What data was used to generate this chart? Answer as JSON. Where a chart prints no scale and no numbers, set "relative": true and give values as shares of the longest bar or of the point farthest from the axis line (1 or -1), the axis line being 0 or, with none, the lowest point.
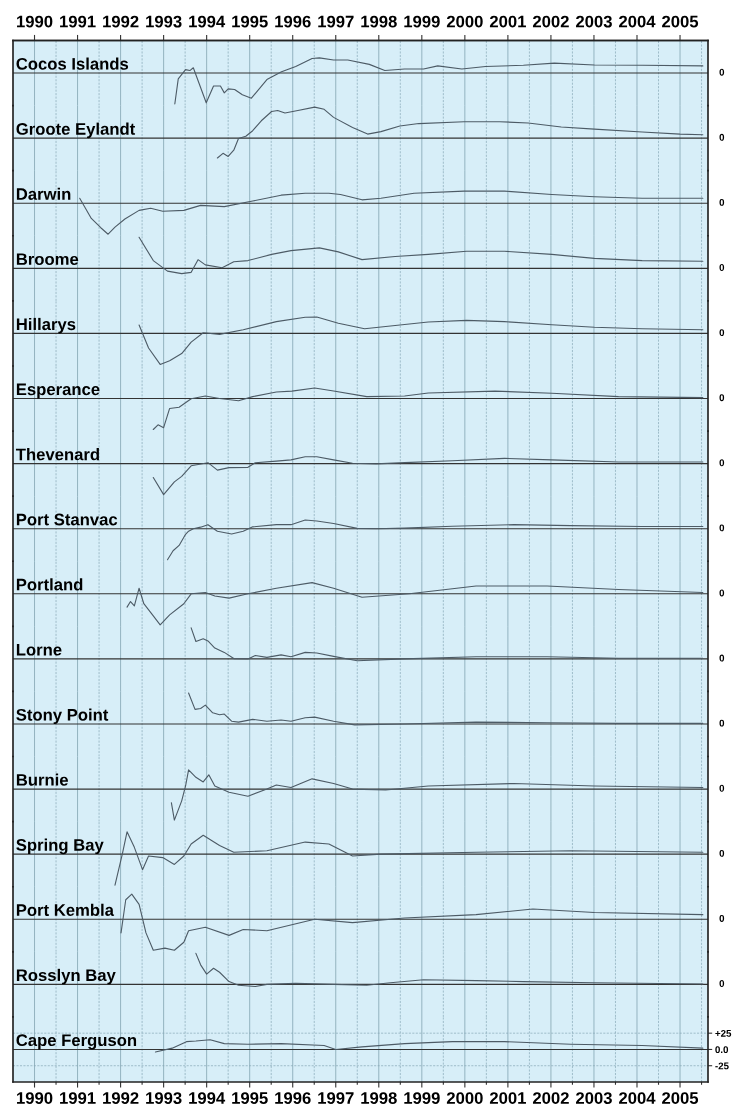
{
  "chart_data": [
    {
      "type": "line",
      "title": "Cocos Islands",
      "relative": true,
      "annotations": [
        "0"
      ],
      "color": "#4d5b66",
      "grid": "x",
      "tick_labels": false,
      "x2lim": [
        1989.5,
        2005.65
      ],
      "x2ticks": [
        1990,
        1991,
        1992,
        1993,
        1994,
        1995,
        1996,
        1997,
        1998,
        1999,
        2000,
        2001,
        2002,
        2003,
        2004,
        2005
      ],
      "xlim": [
        1989.5,
        2005.65
      ],
      "xticks": [
        1990,
        {
          "value": 1990.5,
          "label": null
        },
        1991,
        {
          "value": 1991.5,
          "label": null
        },
        1992,
        {
          "value": 1992.5,
          "label": null
        },
        1993,
        {
          "value": 1993.5,
          "label": null
        },
        1994,
        {
          "value": 1994.5,
          "label": null
        },
        1995,
        {
          "value": 1995.5,
          "label": null
        },
        1996,
        {
          "value": 1996.5,
          "label": null
        },
        1997,
        {
          "value": 1997.5,
          "label": null
        },
        1998,
        {
          "value": 1998.5,
          "label": null
        },
        1999,
        {
          "value": 1999.5,
          "label": null
        },
        2000,
        {
          "value": 2000.5,
          "label": null
        },
        2001,
        {
          "value": 2001.5,
          "label": null
        },
        2002,
        {
          "value": 2002.5,
          "label": null
        },
        2003,
        {
          "value": 2003.5,
          "label": null
        },
        2004,
        {
          "value": 2004.5,
          "label": null
        },
        2005,
        {
          "value": 2005.5,
          "label": null
        }
      ],
      "x": [
        1993.26,
        1993.34,
        1993.51,
        1993.61,
        1993.69,
        1993.99,
        1994.16,
        1994.32,
        1994.41,
        1994.5,
        1994.65,
        1994.83,
        1995.04,
        1995.4,
        1995.74,
        1996.07,
        1996.45,
        1996.62,
        1996.95,
        1997.28,
        1997.78,
        1998.14,
        1998.6,
        1999.04,
        1999.37,
        1999.93,
        2000.48,
        2001.36,
        2002.08,
        2003.01,
        2004.12,
        2005.53
      ],
      "values": [
        -1,
        -0.19,
        0.11,
        0.08,
        0.17,
        -0.96,
        -0.42,
        -0.42,
        -0.64,
        -0.51,
        -0.53,
        -0.7,
        -0.81,
        -0.21,
        0.04,
        0.21,
        0.47,
        0.49,
        0.42,
        0.42,
        0.28,
        0.08,
        0.13,
        0.13,
        0.23,
        0.13,
        0.21,
        0.25,
        0.32,
        0.26,
        0.25,
        0.23
      ]
    },
    {
      "type": "line",
      "title": "Groote Eylandt",
      "relative": true,
      "annotations": [
        "0"
      ],
      "color": "#4d5b66",
      "grid": "x",
      "tick_labels": false,
      "xlim": [
        1989.5,
        2005.65
      ],
      "xticks": [
        1990,
        {
          "value": 1990.5,
          "label": null
        },
        1991,
        {
          "value": 1991.5,
          "label": null
        },
        1992,
        {
          "value": 1992.5,
          "label": null
        },
        1993,
        {
          "value": 1993.5,
          "label": null
        },
        1994,
        {
          "value": 1994.5,
          "label": null
        },
        1995,
        {
          "value": 1995.5,
          "label": null
        },
        1996,
        {
          "value": 1996.5,
          "label": null
        },
        1997,
        {
          "value": 1997.5,
          "label": null
        },
        1998,
        {
          "value": 1998.5,
          "label": null
        },
        1999,
        {
          "value": 1999.5,
          "label": null
        },
        2000,
        {
          "value": 2000.5,
          "label": null
        },
        2001,
        {
          "value": 2001.5,
          "label": null
        },
        2002,
        {
          "value": 2002.5,
          "label": null
        },
        2003,
        {
          "value": 2003.5,
          "label": null
        },
        2004,
        {
          "value": 2004.5,
          "label": null
        },
        2005,
        {
          "value": 2005.5,
          "label": null
        }
      ],
      "x": [
        1994.25,
        1994.38,
        1994.5,
        1994.63,
        1994.74,
        1994.91,
        1995.07,
        1995.27,
        1995.51,
        1995.65,
        1995.82,
        1996.12,
        1996.51,
        1996.73,
        1996.95,
        1997.39,
        1997.74,
        1998.05,
        1998.49,
        1998.93,
        1999.98,
        2000.81,
        2001.47,
        2002.24,
        2003.01,
        2004.12,
        2005.0,
        2005.53
      ],
      "values": [
        -0.64,
        -0.49,
        -0.59,
        -0.39,
        -0.01,
        0.06,
        0.24,
        0.56,
        0.86,
        0.89,
        0.81,
        0.89,
        1,
        0.93,
        0.67,
        0.34,
        0.13,
        0.21,
        0.39,
        0.47,
        0.53,
        0.53,
        0.49,
        0.36,
        0.29,
        0.2,
        0.13,
        0.11
      ]
    },
    {
      "type": "line",
      "title": "Darwin",
      "relative": true,
      "annotations": [
        "0"
      ],
      "color": "#4d5b66",
      "grid": "x",
      "tick_labels": false,
      "xlim": [
        1989.5,
        2005.65
      ],
      "xticks": [
        1990,
        {
          "value": 1990.5,
          "label": null
        },
        1991,
        {
          "value": 1991.5,
          "label": null
        },
        1992,
        {
          "value": 1992.5,
          "label": null
        },
        1993,
        {
          "value": 1993.5,
          "label": null
        },
        1994,
        {
          "value": 1994.5,
          "label": null
        },
        1995,
        {
          "value": 1995.5,
          "label": null
        },
        1996,
        {
          "value": 1996.5,
          "label": null
        },
        1997,
        {
          "value": 1997.5,
          "label": null
        },
        1998,
        {
          "value": 1998.5,
          "label": null
        },
        1999,
        {
          "value": 1999.5,
          "label": null
        },
        2000,
        {
          "value": 2000.5,
          "label": null
        },
        2001,
        {
          "value": 2001.5,
          "label": null
        },
        2002,
        {
          "value": 2002.5,
          "label": null
        },
        2003,
        {
          "value": 2003.5,
          "label": null
        },
        2004,
        {
          "value": 2004.5,
          "label": null
        },
        2005,
        {
          "value": 2005.5,
          "label": null
        }
      ],
      "x": [
        1991.05,
        1991.32,
        1991.54,
        1991.71,
        1991.87,
        1992.1,
        1992.43,
        1992.7,
        1992.98,
        1993.47,
        1993.86,
        1994.41,
        1995.07,
        1995.73,
        1996.29,
        1996.84,
        1997.11,
        1997.61,
        1998.05,
        1998.82,
        1999.98,
        2000.92,
        2002.02,
        2003.01,
        2004.12,
        2005.53
      ],
      "values": [
        0.16,
        -0.49,
        -0.79,
        -1,
        -0.77,
        -0.51,
        -0.23,
        -0.16,
        -0.26,
        -0.23,
        -0.07,
        -0.11,
        0.07,
        0.26,
        0.32,
        0.32,
        0.28,
        0.11,
        0.16,
        0.32,
        0.39,
        0.39,
        0.28,
        0.21,
        0.16,
        0.16
      ]
    },
    {
      "type": "line",
      "title": "Broome",
      "relative": true,
      "annotations": [
        "0"
      ],
      "color": "#4d5b66",
      "grid": "x",
      "tick_labels": false,
      "xlim": [
        1989.5,
        2005.65
      ],
      "xticks": [
        1990,
        {
          "value": 1990.5,
          "label": null
        },
        1991,
        {
          "value": 1991.5,
          "label": null
        },
        1992,
        {
          "value": 1992.5,
          "label": null
        },
        1993,
        {
          "value": 1993.5,
          "label": null
        },
        1994,
        {
          "value": 1994.5,
          "label": null
        },
        1995,
        {
          "value": 1995.5,
          "label": null
        },
        1996,
        {
          "value": 1996.5,
          "label": null
        },
        1997,
        {
          "value": 1997.5,
          "label": null
        },
        1998,
        {
          "value": 1998.5,
          "label": null
        },
        1999,
        {
          "value": 1999.5,
          "label": null
        },
        2000,
        {
          "value": 2000.5,
          "label": null
        },
        2001,
        {
          "value": 2001.5,
          "label": null
        },
        2002,
        {
          "value": 2002.5,
          "label": null
        },
        2003,
        {
          "value": 2003.5,
          "label": null
        },
        2004,
        {
          "value": 2004.5,
          "label": null
        },
        2005,
        {
          "value": 2005.5,
          "label": null
        }
      ],
      "x": [
        1992.43,
        1992.76,
        1993.09,
        1993.42,
        1993.64,
        1993.8,
        1993.97,
        1994.36,
        1994.63,
        1994.96,
        1995.51,
        1995.96,
        1996.62,
        1997.06,
        1997.61,
        1998.38,
        1999.15,
        2000.04,
        2000.92,
        2002.02,
        2003.01,
        2004.12,
        2005.53
      ],
      "values": [
        1,
        0.25,
        -0.09,
        -0.17,
        -0.13,
        0.28,
        0.11,
        0.02,
        0.21,
        0.25,
        0.45,
        0.57,
        0.66,
        0.53,
        0.28,
        0.38,
        0.45,
        0.55,
        0.55,
        0.45,
        0.32,
        0.25,
        0.23
      ]
    },
    {
      "type": "line",
      "title": "Hillarys",
      "relative": true,
      "annotations": [
        "0"
      ],
      "color": "#4d5b66",
      "grid": "x",
      "tick_labels": false,
      "xlim": [
        1989.5,
        2005.65
      ],
      "xticks": [
        1990,
        {
          "value": 1990.5,
          "label": null
        },
        1991,
        {
          "value": 1991.5,
          "label": null
        },
        1992,
        {
          "value": 1992.5,
          "label": null
        },
        1993,
        {
          "value": 1993.5,
          "label": null
        },
        1994,
        {
          "value": 1994.5,
          "label": null
        },
        1995,
        {
          "value": 1995.5,
          "label": null
        },
        1996,
        {
          "value": 1996.5,
          "label": null
        },
        1997,
        {
          "value": 1997.5,
          "label": null
        },
        1998,
        {
          "value": 1998.5,
          "label": null
        },
        1999,
        {
          "value": 1999.5,
          "label": null
        },
        2000,
        {
          "value": 2000.5,
          "label": null
        },
        2001,
        {
          "value": 2001.5,
          "label": null
        },
        2002,
        {
          "value": 2002.5,
          "label": null
        },
        2003,
        {
          "value": 2003.5,
          "label": null
        },
        2004,
        {
          "value": 2004.5,
          "label": null
        },
        2005,
        {
          "value": 2005.5,
          "label": null
        }
      ],
      "x": [
        1992.43,
        1992.65,
        1992.92,
        1993.14,
        1993.42,
        1993.64,
        1993.92,
        1994.3,
        1994.85,
        1995.62,
        1996.29,
        1996.56,
        1997.06,
        1997.67,
        1998.49,
        1999.15,
        2000.04,
        2000.92,
        2002.02,
        2003.01,
        2004.12,
        2005.53
      ],
      "values": [
        0.27,
        -0.47,
        -1,
        -0.88,
        -0.65,
        -0.28,
        0.02,
        -0.03,
        0.12,
        0.38,
        0.52,
        0.53,
        0.33,
        0.15,
        0.27,
        0.37,
        0.42,
        0.38,
        0.28,
        0.2,
        0.15,
        0.12
      ]
    },
    {
      "type": "line",
      "title": "Esperance",
      "relative": true,
      "annotations": [
        "0"
      ],
      "color": "#4d5b66",
      "grid": "x",
      "tick_labels": false,
      "xlim": [
        1989.5,
        2005.65
      ],
      "xticks": [
        1990,
        {
          "value": 1990.5,
          "label": null
        },
        1991,
        {
          "value": 1991.5,
          "label": null
        },
        1992,
        {
          "value": 1992.5,
          "label": null
        },
        1993,
        {
          "value": 1993.5,
          "label": null
        },
        1994,
        {
          "value": 1994.5,
          "label": null
        },
        1995,
        {
          "value": 1995.5,
          "label": null
        },
        1996,
        {
          "value": 1996.5,
          "label": null
        },
        1997,
        {
          "value": 1997.5,
          "label": null
        },
        1998,
        {
          "value": 1998.5,
          "label": null
        },
        1999,
        {
          "value": 1999.5,
          "label": null
        },
        2000,
        {
          "value": 2000.5,
          "label": null
        },
        2001,
        {
          "value": 2001.5,
          "label": null
        },
        2002,
        {
          "value": 2002.5,
          "label": null
        },
        2003,
        {
          "value": 2003.5,
          "label": null
        },
        2004,
        {
          "value": 2004.5,
          "label": null
        },
        2005,
        {
          "value": 2005.5,
          "label": null
        }
      ],
      "x": [
        1992.76,
        1992.87,
        1993.0,
        1993.14,
        1993.36,
        1993.64,
        1993.97,
        1994.3,
        1994.74,
        1995.07,
        1995.62,
        1995.98,
        1996.51,
        1996.95,
        1997.72,
        1998.6,
        1999.15,
        2000.7,
        2002.02,
        2003.57,
        2005.53
      ],
      "values": [
        -1,
        -0.85,
        -0.94,
        -0.32,
        -0.28,
        -0.01,
        0.08,
        0,
        -0.07,
        0.06,
        0.21,
        0.24,
        0.34,
        0.24,
        0.06,
        0.08,
        0.18,
        0.24,
        0.17,
        0.06,
        0.03
      ]
    },
    {
      "type": "line",
      "title": "Thevenard",
      "relative": true,
      "annotations": [
        "0"
      ],
      "color": "#4d5b66",
      "grid": "x",
      "tick_labels": false,
      "xlim": [
        1989.5,
        2005.65
      ],
      "xticks": [
        1990,
        {
          "value": 1990.5,
          "label": null
        },
        1991,
        {
          "value": 1991.5,
          "label": null
        },
        1992,
        {
          "value": 1992.5,
          "label": null
        },
        1993,
        {
          "value": 1993.5,
          "label": null
        },
        1994,
        {
          "value": 1994.5,
          "label": null
        },
        1995,
        {
          "value": 1995.5,
          "label": null
        },
        1996,
        {
          "value": 1996.5,
          "label": null
        },
        1997,
        {
          "value": 1997.5,
          "label": null
        },
        1998,
        {
          "value": 1998.5,
          "label": null
        },
        1999,
        {
          "value": 1999.5,
          "label": null
        },
        2000,
        {
          "value": 2000.5,
          "label": null
        },
        2001,
        {
          "value": 2001.5,
          "label": null
        },
        2002,
        {
          "value": 2002.5,
          "label": null
        },
        2003,
        {
          "value": 2003.5,
          "label": null
        },
        2004,
        {
          "value": 2004.5,
          "label": null
        },
        2005,
        {
          "value": 2005.5,
          "label": null
        }
      ],
      "x": [
        1992.76,
        1993.0,
        1993.25,
        1993.42,
        1993.64,
        1994.03,
        1994.25,
        1994.52,
        1994.96,
        1995.13,
        1995.62,
        1995.96,
        1996.29,
        1996.56,
        1996.95,
        1997.39,
        1997.94,
        1998.6,
        1999.71,
        2000.92,
        2002.02,
        2003.57,
        2005.53
      ],
      "values": [
        -0.45,
        -1,
        -0.59,
        -0.41,
        -0.07,
        0.03,
        -0.21,
        -0.13,
        -0.12,
        0.03,
        0.08,
        0.12,
        0.22,
        0.22,
        0.12,
        0.01,
        -0.01,
        0.03,
        0.09,
        0.17,
        0.12,
        0.05,
        0.05
      ]
    },
    {
      "type": "line",
      "title": "Port Stanvac",
      "relative": true,
      "annotations": [
        "0"
      ],
      "color": "#4d5b66",
      "grid": "x",
      "tick_labels": false,
      "xlim": [
        1989.5,
        2005.65
      ],
      "xticks": [
        1990,
        {
          "value": 1990.5,
          "label": null
        },
        1991,
        {
          "value": 1991.5,
          "label": null
        },
        1992,
        {
          "value": 1992.5,
          "label": null
        },
        1993,
        {
          "value": 1993.5,
          "label": null
        },
        1994,
        {
          "value": 1994.5,
          "label": null
        },
        1995,
        {
          "value": 1995.5,
          "label": null
        },
        1996,
        {
          "value": 1996.5,
          "label": null
        },
        1997,
        {
          "value": 1997.5,
          "label": null
        },
        1998,
        {
          "value": 1998.5,
          "label": null
        },
        1999,
        {
          "value": 1999.5,
          "label": null
        },
        2000,
        {
          "value": 2000.5,
          "label": null
        },
        2001,
        {
          "value": 2001.5,
          "label": null
        },
        2002,
        {
          "value": 2002.5,
          "label": null
        },
        2003,
        {
          "value": 2003.5,
          "label": null
        },
        2004,
        {
          "value": 2004.5,
          "label": null
        },
        2005,
        {
          "value": 2005.5,
          "label": null
        }
      ],
      "x": [
        1993.09,
        1993.22,
        1993.36,
        1993.51,
        1993.58,
        1993.69,
        1993.86,
        1994.03,
        1994.25,
        1994.58,
        1994.85,
        1995.07,
        1995.62,
        1995.96,
        1996.29,
        1996.56,
        1996.95,
        1997.5,
        1997.94,
        1998.6,
        1999.71,
        2001.14,
        2002.46,
        2004.12,
        2005.53
      ],
      "values": [
        -1,
        -0.71,
        -0.54,
        -0.18,
        -0.08,
        0,
        0.05,
        0.13,
        -0.08,
        -0.17,
        -0.08,
        0.06,
        0.13,
        0.13,
        0.28,
        0.25,
        0.17,
        0.01,
        0,
        0.02,
        0.08,
        0.13,
        0.1,
        0.07,
        0.07
      ]
    },
    {
      "type": "line",
      "title": "Portland",
      "relative": true,
      "annotations": [
        "0"
      ],
      "color": "#4d5b66",
      "grid": "x",
      "tick_labels": false,
      "xlim": [
        1989.5,
        2005.65
      ],
      "xticks": [
        1990,
        {
          "value": 1990.5,
          "label": null
        },
        1991,
        {
          "value": 1991.5,
          "label": null
        },
        1992,
        {
          "value": 1992.5,
          "label": null
        },
        1993,
        {
          "value": 1993.5,
          "label": null
        },
        1994,
        {
          "value": 1994.5,
          "label": null
        },
        1995,
        {
          "value": 1995.5,
          "label": null
        },
        1996,
        {
          "value": 1996.5,
          "label": null
        },
        1997,
        {
          "value": 1997.5,
          "label": null
        },
        1998,
        {
          "value": 1998.5,
          "label": null
        },
        1999,
        {
          "value": 1999.5,
          "label": null
        },
        2000,
        {
          "value": 2000.5,
          "label": null
        },
        2001,
        {
          "value": 2001.5,
          "label": null
        },
        2002,
        {
          "value": 2002.5,
          "label": null
        },
        2003,
        {
          "value": 2003.5,
          "label": null
        },
        2004,
        {
          "value": 2004.5,
          "label": null
        },
        2005,
        {
          "value": 2005.5,
          "label": null
        }
      ],
      "x": [
        1992.15,
        1992.23,
        1992.32,
        1992.43,
        1992.54,
        1992.76,
        1992.92,
        1993.14,
        1993.47,
        1993.64,
        1993.97,
        1994.19,
        1994.52,
        1994.96,
        1995.62,
        1996.45,
        1996.95,
        1997.61,
        1998.71,
        2000.26,
        2001.91,
        2003.57,
        2005.53
      ],
      "values": [
        -0.43,
        -0.25,
        -0.39,
        0.18,
        -0.32,
        -0.71,
        -1,
        -0.68,
        -0.32,
        0,
        0.04,
        -0.07,
        -0.14,
        0,
        0.18,
        0.36,
        0.18,
        -0.11,
        0,
        0.25,
        0.25,
        0.14,
        0.04
      ]
    },
    {
      "type": "line",
      "title": "Lorne",
      "relative": true,
      "annotations": [
        "0"
      ],
      "color": "#4d5b66",
      "grid": "x",
      "tick_labels": false,
      "xlim": [
        1989.5,
        2005.65
      ],
      "xticks": [
        1990,
        {
          "value": 1990.5,
          "label": null
        },
        1991,
        {
          "value": 1991.5,
          "label": null
        },
        1992,
        {
          "value": 1992.5,
          "label": null
        },
        1993,
        {
          "value": 1993.5,
          "label": null
        },
        1994,
        {
          "value": 1994.5,
          "label": null
        },
        1995,
        {
          "value": 1995.5,
          "label": null
        },
        1996,
        {
          "value": 1996.5,
          "label": null
        },
        1997,
        {
          "value": 1997.5,
          "label": null
        },
        1998,
        {
          "value": 1998.5,
          "label": null
        },
        1999,
        {
          "value": 1999.5,
          "label": null
        },
        2000,
        {
          "value": 2000.5,
          "label": null
        },
        2001,
        {
          "value": 2001.5,
          "label": null
        },
        2002,
        {
          "value": 2002.5,
          "label": null
        },
        2003,
        {
          "value": 2003.5,
          "label": null
        },
        2004,
        {
          "value": 2004.5,
          "label": null
        },
        2005,
        {
          "value": 2005.5,
          "label": null
        }
      ],
      "x": [
        1993.64,
        1993.75,
        1993.92,
        1994.03,
        1994.19,
        1994.41,
        1994.63,
        1994.96,
        1995.13,
        1995.4,
        1995.73,
        1995.96,
        1996.29,
        1996.56,
        1996.95,
        1997.5,
        1998.6,
        2000.26,
        2001.91,
        2003.57,
        2005.53
      ],
      "values": [
        1,
        0.56,
        0.65,
        0.58,
        0.35,
        0.21,
        0.01,
        0,
        0.11,
        0.05,
        0.13,
        0.07,
        0.21,
        0.19,
        0.08,
        -0.06,
        0,
        0.07,
        0.07,
        0.02,
        0.02
      ]
    },
    {
      "type": "line",
      "title": "Stony Point",
      "relative": true,
      "annotations": [
        "0"
      ],
      "color": "#4d5b66",
      "grid": "x",
      "tick_labels": false,
      "xlim": [
        1989.5,
        2005.65
      ],
      "xticks": [
        1990,
        {
          "value": 1990.5,
          "label": null
        },
        1991,
        {
          "value": 1991.5,
          "label": null
        },
        1992,
        {
          "value": 1992.5,
          "label": null
        },
        1993,
        {
          "value": 1993.5,
          "label": null
        },
        1994,
        {
          "value": 1994.5,
          "label": null
        },
        1995,
        {
          "value": 1995.5,
          "label": null
        },
        1996,
        {
          "value": 1996.5,
          "label": null
        },
        1997,
        {
          "value": 1997.5,
          "label": null
        },
        1998,
        {
          "value": 1998.5,
          "label": null
        },
        1999,
        {
          "value": 1999.5,
          "label": null
        },
        2000,
        {
          "value": 2000.5,
          "label": null
        },
        2001,
        {
          "value": 2001.5,
          "label": null
        },
        2002,
        {
          "value": 2002.5,
          "label": null
        },
        2003,
        {
          "value": 2003.5,
          "label": null
        },
        2004,
        {
          "value": 2004.5,
          "label": null
        },
        2005,
        {
          "value": 2005.5,
          "label": null
        }
      ],
      "x": [
        1993.58,
        1993.73,
        1993.86,
        1993.97,
        1994.14,
        1994.3,
        1994.41,
        1994.58,
        1994.74,
        1995.07,
        1995.4,
        1995.73,
        1995.96,
        1996.29,
        1996.51,
        1996.95,
        1997.44,
        1998.6,
        2000.26,
        2001.91,
        2003.57,
        2005.53
      ],
      "values": [
        1,
        0.47,
        0.5,
        0.61,
        0.36,
        0.3,
        0.32,
        0.09,
        0.06,
        0.15,
        0.09,
        0.13,
        0.09,
        0.2,
        0.22,
        0.09,
        -0.03,
        0,
        0.06,
        0.04,
        0.02,
        0.02
      ]
    },
    {
      "type": "line",
      "title": "Burnie",
      "relative": true,
      "annotations": [
        "0"
      ],
      "color": "#4d5b66",
      "grid": "x",
      "tick_labels": false,
      "xlim": [
        1989.5,
        2005.65
      ],
      "xticks": [
        1990,
        {
          "value": 1990.5,
          "label": null
        },
        1991,
        {
          "value": 1991.5,
          "label": null
        },
        1992,
        {
          "value": 1992.5,
          "label": null
        },
        1993,
        {
          "value": 1993.5,
          "label": null
        },
        1994,
        {
          "value": 1994.5,
          "label": null
        },
        1995,
        {
          "value": 1995.5,
          "label": null
        },
        1996,
        {
          "value": 1996.5,
          "label": null
        },
        1997,
        {
          "value": 1997.5,
          "label": null
        },
        1998,
        {
          "value": 1998.5,
          "label": null
        },
        1999,
        {
          "value": 1999.5,
          "label": null
        },
        2000,
        {
          "value": 2000.5,
          "label": null
        },
        2001,
        {
          "value": 2001.5,
          "label": null
        },
        2002,
        {
          "value": 2002.5,
          "label": null
        },
        2003,
        {
          "value": 2003.5,
          "label": null
        },
        2004,
        {
          "value": 2004.5,
          "label": null
        },
        2005,
        {
          "value": 2005.5,
          "label": null
        }
      ],
      "x": [
        1993.18,
        1993.25,
        1993.42,
        1993.51,
        1993.58,
        1993.75,
        1993.92,
        1994.05,
        1994.19,
        1994.52,
        1994.96,
        1995.4,
        1995.62,
        1995.96,
        1996.45,
        1996.95,
        1997.39,
        1998.16,
        1999.15,
        2001.14,
        2003.01,
        2005.53
      ],
      "values": [
        -0.44,
        -1,
        -0.38,
        0.1,
        0.62,
        0.38,
        0.23,
        0.46,
        0.1,
        -0.1,
        -0.23,
        0,
        0.13,
        0.05,
        0.33,
        0.18,
        0,
        -0.03,
        0.1,
        0.18,
        0.1,
        0.05
      ]
    },
    {
      "type": "line",
      "title": "Spring Bay",
      "relative": true,
      "annotations": [
        "0"
      ],
      "color": "#4d5b66",
      "grid": "x",
      "tick_labels": false,
      "xlim": [
        1989.5,
        2005.65
      ],
      "xticks": [
        1990,
        {
          "value": 1990.5,
          "label": null
        },
        1991,
        {
          "value": 1991.5,
          "label": null
        },
        1992,
        {
          "value": 1992.5,
          "label": null
        },
        1993,
        {
          "value": 1993.5,
          "label": null
        },
        1994,
        {
          "value": 1994.5,
          "label": null
        },
        1995,
        {
          "value": 1995.5,
          "label": null
        },
        1996,
        {
          "value": 1996.5,
          "label": null
        },
        1997,
        {
          "value": 1997.5,
          "label": null
        },
        1998,
        {
          "value": 1998.5,
          "label": null
        },
        1999,
        {
          "value": 1999.5,
          "label": null
        },
        2000,
        {
          "value": 2000.5,
          "label": null
        },
        2001,
        {
          "value": 2001.5,
          "label": null
        },
        2002,
        {
          "value": 2002.5,
          "label": null
        },
        2003,
        {
          "value": 2003.5,
          "label": null
        },
        2004,
        {
          "value": 2004.5,
          "label": null
        },
        2005,
        {
          "value": 2005.5,
          "label": null
        }
      ],
      "x": [
        1991.87,
        1992.04,
        1992.15,
        1992.32,
        1992.51,
        1992.65,
        1992.98,
        1993.25,
        1993.47,
        1993.64,
        1993.92,
        1994.3,
        1994.63,
        1995.4,
        1996.29,
        1996.84,
        1997.39,
        1998.05,
        2000.26,
        2002.46,
        2005.53
      ],
      "values": [
        -1,
        0,
        0.72,
        0.22,
        -0.5,
        -0.06,
        -0.11,
        -0.33,
        -0.06,
        0.33,
        0.61,
        0.28,
        0.06,
        0.11,
        0.39,
        0.33,
        -0.06,
        0,
        0.06,
        0.11,
        0.06
      ]
    },
    {
      "type": "line",
      "title": "Port Kembla",
      "relative": true,
      "annotations": [
        "0"
      ],
      "color": "#4d5b66",
      "grid": "x",
      "tick_labels": false,
      "xlim": [
        1989.5,
        2005.65
      ],
      "xticks": [
        1990,
        {
          "value": 1990.5,
          "label": null
        },
        1991,
        {
          "value": 1991.5,
          "label": null
        },
        1992,
        {
          "value": 1992.5,
          "label": null
        },
        1993,
        {
          "value": 1993.5,
          "label": null
        },
        1994,
        {
          "value": 1994.5,
          "label": null
        },
        1995,
        {
          "value": 1995.5,
          "label": null
        },
        1996,
        {
          "value": 1996.5,
          "label": null
        },
        1997,
        {
          "value": 1997.5,
          "label": null
        },
        1998,
        {
          "value": 1998.5,
          "label": null
        },
        1999,
        {
          "value": 1999.5,
          "label": null
        },
        2000,
        {
          "value": 2000.5,
          "label": null
        },
        2001,
        {
          "value": 2001.5,
          "label": null
        },
        2002,
        {
          "value": 2002.5,
          "label": null
        },
        2003,
        {
          "value": 2003.5,
          "label": null
        },
        2004,
        {
          "value": 2004.5,
          "label": null
        },
        2005,
        {
          "value": 2005.5,
          "label": null
        }
      ],
      "x": [
        1992.01,
        1992.12,
        1992.26,
        1992.43,
        1992.59,
        1992.76,
        1993.03,
        1993.25,
        1993.47,
        1993.58,
        1993.97,
        1994.52,
        1994.85,
        1995.4,
        1996.51,
        1997.39,
        1998.6,
        2000.26,
        2001.58,
        2003.01,
        2005.53
      ],
      "values": [
        -0.44,
        0.63,
        0.81,
        0.48,
        -0.44,
        -1,
        -0.93,
        -1,
        -0.74,
        -0.37,
        -0.26,
        -0.52,
        -0.33,
        -0.37,
        0,
        -0.11,
        0.04,
        0.15,
        0.33,
        0.22,
        0.15
      ]
    },
    {
      "type": "line",
      "title": "Rosslyn Bay",
      "relative": true,
      "annotations": [
        "0"
      ],
      "color": "#4d5b66",
      "grid": "x",
      "tick_labels": false,
      "xlim": [
        1989.5,
        2005.65
      ],
      "xticks": [
        1990,
        {
          "value": 1990.5,
          "label": null
        },
        1991,
        {
          "value": 1991.5,
          "label": null
        },
        1992,
        {
          "value": 1992.5,
          "label": null
        },
        1993,
        {
          "value": 1993.5,
          "label": null
        },
        1994,
        {
          "value": 1994.5,
          "label": null
        },
        1995,
        {
          "value": 1995.5,
          "label": null
        },
        1996,
        {
          "value": 1996.5,
          "label": null
        },
        1997,
        {
          "value": 1997.5,
          "label": null
        },
        1998,
        {
          "value": 1998.5,
          "label": null
        },
        1999,
        {
          "value": 1999.5,
          "label": null
        },
        2000,
        {
          "value": 2000.5,
          "label": null
        },
        2001,
        {
          "value": 2001.5,
          "label": null
        },
        2002,
        {
          "value": 2002.5,
          "label": null
        },
        2003,
        {
          "value": 2003.5,
          "label": null
        },
        2004,
        {
          "value": 2004.5,
          "label": null
        },
        2005,
        {
          "value": 2005.5,
          "label": null
        }
      ],
      "x": [
        1993.75,
        1993.86,
        1994.0,
        1994.16,
        1994.3,
        1994.52,
        1994.74,
        1995.13,
        1995.4,
        1996.07,
        1996.95,
        1997.72,
        1998.27,
        1999.04,
        2000.26,
        2001.36,
        2003.01,
        2005.53
      ],
      "values": [
        1,
        0.63,
        0.33,
        0.52,
        0.39,
        0.09,
        -0.03,
        -0.07,
        0,
        0.03,
        0,
        -0.03,
        0.05,
        0.15,
        0.12,
        0.09,
        0.05,
        0.01
      ]
    },
    {
      "type": "line",
      "title": "Cape Ferguson",
      "color": "#4d5b66",
      "grid": true,
      "xlim": [
        1989.5,
        2005.65
      ],
      "xticks": [
        1990,
        {
          "value": 1990.5,
          "label": null
        },
        1991,
        {
          "value": 1991.5,
          "label": null
        },
        1992,
        {
          "value": 1992.5,
          "label": null
        },
        1993,
        {
          "value": 1993.5,
          "label": null
        },
        1994,
        {
          "value": 1994.5,
          "label": null
        },
        1995,
        {
          "value": 1995.5,
          "label": null
        },
        1996,
        {
          "value": 1996.5,
          "label": null
        },
        1997,
        {
          "value": 1997.5,
          "label": null
        },
        1998,
        {
          "value": 1998.5,
          "label": null
        },
        1999,
        {
          "value": 1999.5,
          "label": null
        },
        2000,
        {
          "value": 2000.5,
          "label": null
        },
        2001,
        {
          "value": 2001.5,
          "label": null
        },
        2002,
        {
          "value": 2002.5,
          "label": null
        },
        2003,
        {
          "value": 2003.5,
          "label": null
        },
        2004,
        {
          "value": 2004.5,
          "label": null
        },
        2005,
        {
          "value": 2005.5,
          "label": null
        }
      ],
      "ylim": [
        -50,
        50
      ],
      "yticks": [
        {
          "value": -25,
          "label": "-25"
        },
        {
          "value": 0,
          "label": "0.0"
        },
        {
          "value": 25,
          "label": "+25"
        }
      ],
      "x": [
        1992.81,
        1993.2,
        1993.53,
        1993.75,
        1994.08,
        1994.41,
        1994.96,
        1995.73,
        1996.73,
        1997.0,
        1997.61,
        1998.6,
        1999.71,
        2000.92,
        2002.46,
        2004.12,
        2005.53
      ],
      "values": [
        -4,
        2,
        12,
        13,
        15,
        9,
        8,
        9,
        6,
        0,
        4,
        9,
        12,
        12,
        8,
        6,
        2
      ]
    }
  ]
}
